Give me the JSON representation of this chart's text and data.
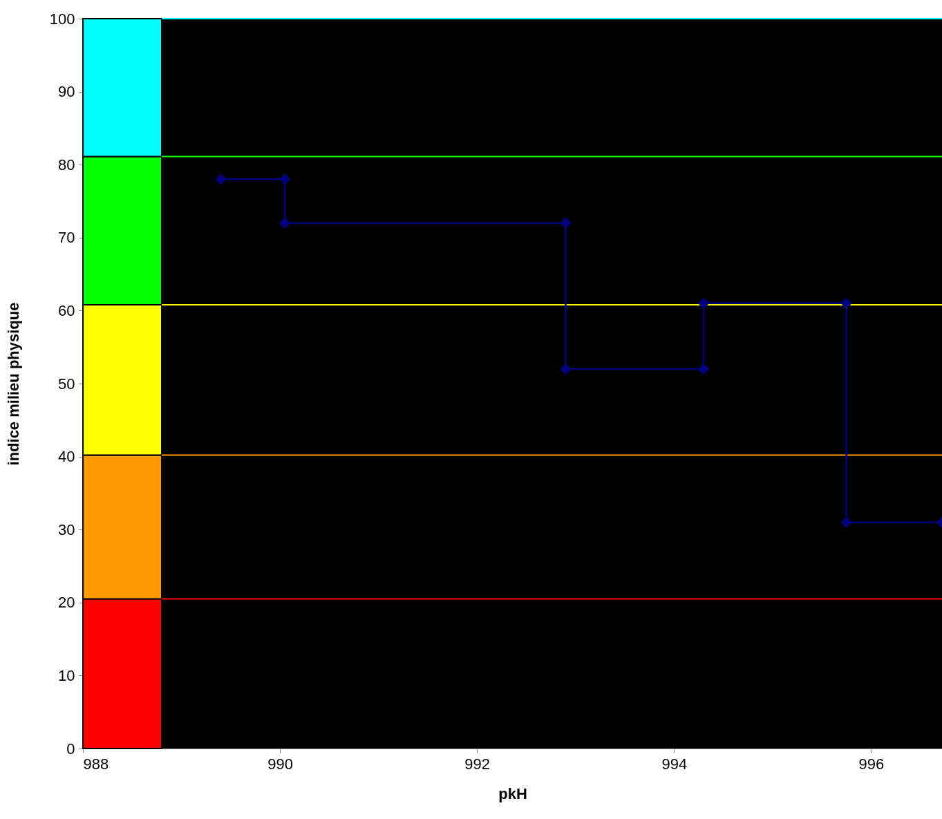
{
  "chart_data": {
    "type": "line",
    "xlabel": "pkH",
    "ylabel": "indice milieu physique",
    "xlim": [
      988,
      996.72
    ],
    "xticks": [
      988,
      990,
      992,
      994,
      996
    ],
    "ylim": [
      0,
      100
    ],
    "yticks": [
      0,
      10,
      20,
      30,
      40,
      50,
      60,
      70,
      80,
      90,
      100
    ],
    "grid": false,
    "marker": "diamond",
    "line_style": "solid",
    "series": [
      {
        "color": "#000080",
        "x": [
          989.4,
          990.05,
          990.05,
          992.9,
          992.9,
          994.3,
          994.3,
          995.75,
          995.75,
          996.72
        ],
        "values": [
          78,
          78,
          72,
          72,
          52,
          52,
          61,
          61,
          31,
          31
        ]
      }
    ],
    "bands": [
      {
        "axis": "y",
        "from": 0,
        "to": 20.5,
        "color": "#ff0000"
      },
      {
        "axis": "y",
        "from": 20.5,
        "to": 40.2,
        "color": "#ff9900"
      },
      {
        "axis": "y",
        "from": 40.2,
        "to": 60.8,
        "color": "#ffff00"
      },
      {
        "axis": "y",
        "from": 60.8,
        "to": 81.1,
        "color": "#00ff00"
      },
      {
        "axis": "y",
        "from": 81.1,
        "to": 100,
        "color": "#00ffff"
      }
    ],
    "ref_lines": [
      {
        "axis": "y",
        "value": 20.5,
        "color": "#ff0000"
      },
      {
        "axis": "y",
        "value": 40.2,
        "color": "#ff9900"
      },
      {
        "axis": "y",
        "value": 60.8,
        "color": "#ffff00"
      },
      {
        "axis": "y",
        "value": 81.1,
        "color": "#00ff00"
      },
      {
        "axis": "y",
        "value": 100,
        "color": "#00ffff"
      }
    ]
  }
}
